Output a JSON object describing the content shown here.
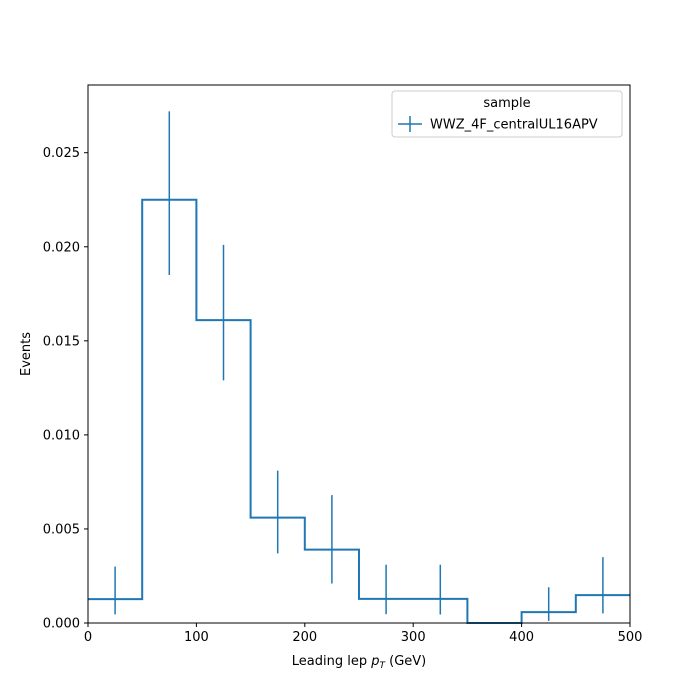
{
  "chart_data": {
    "type": "histogram",
    "title": "",
    "xlabel": {
      "prefix": "Leading lep ",
      "var": "p",
      "sub": "T",
      "suffix": " (GeV)"
    },
    "ylabel": "Events",
    "xlim": [
      0,
      500
    ],
    "ylim": [
      0,
      0.0286
    ],
    "xticks": [
      "0",
      "100",
      "200",
      "300",
      "400",
      "500"
    ],
    "yticks": [
      "0.000",
      "0.005",
      "0.010",
      "0.015",
      "0.020",
      "0.025"
    ],
    "bin_edges": [
      0,
      50,
      100,
      150,
      200,
      250,
      300,
      350,
      400,
      450,
      500
    ],
    "series": [
      {
        "name": "WWZ_4F_centralUL16APV",
        "color": "#1f77b4",
        "values": [
          0.00127,
          0.0225,
          0.0161,
          0.0056,
          0.0039,
          0.00128,
          0.00128,
          0.0,
          0.00058,
          0.00148
        ],
        "err_low": [
          0.00046,
          0.0185,
          0.0129,
          0.0037,
          0.0021,
          0.00047,
          0.00045,
          0.0,
          0.00011,
          0.00051
        ],
        "err_high": [
          0.003,
          0.0272,
          0.0201,
          0.0081,
          0.0068,
          0.0031,
          0.0031,
          0.0,
          0.0019,
          0.0035
        ]
      }
    ],
    "legend": {
      "title": "sample",
      "position": "top-right"
    },
    "grid": false
  }
}
